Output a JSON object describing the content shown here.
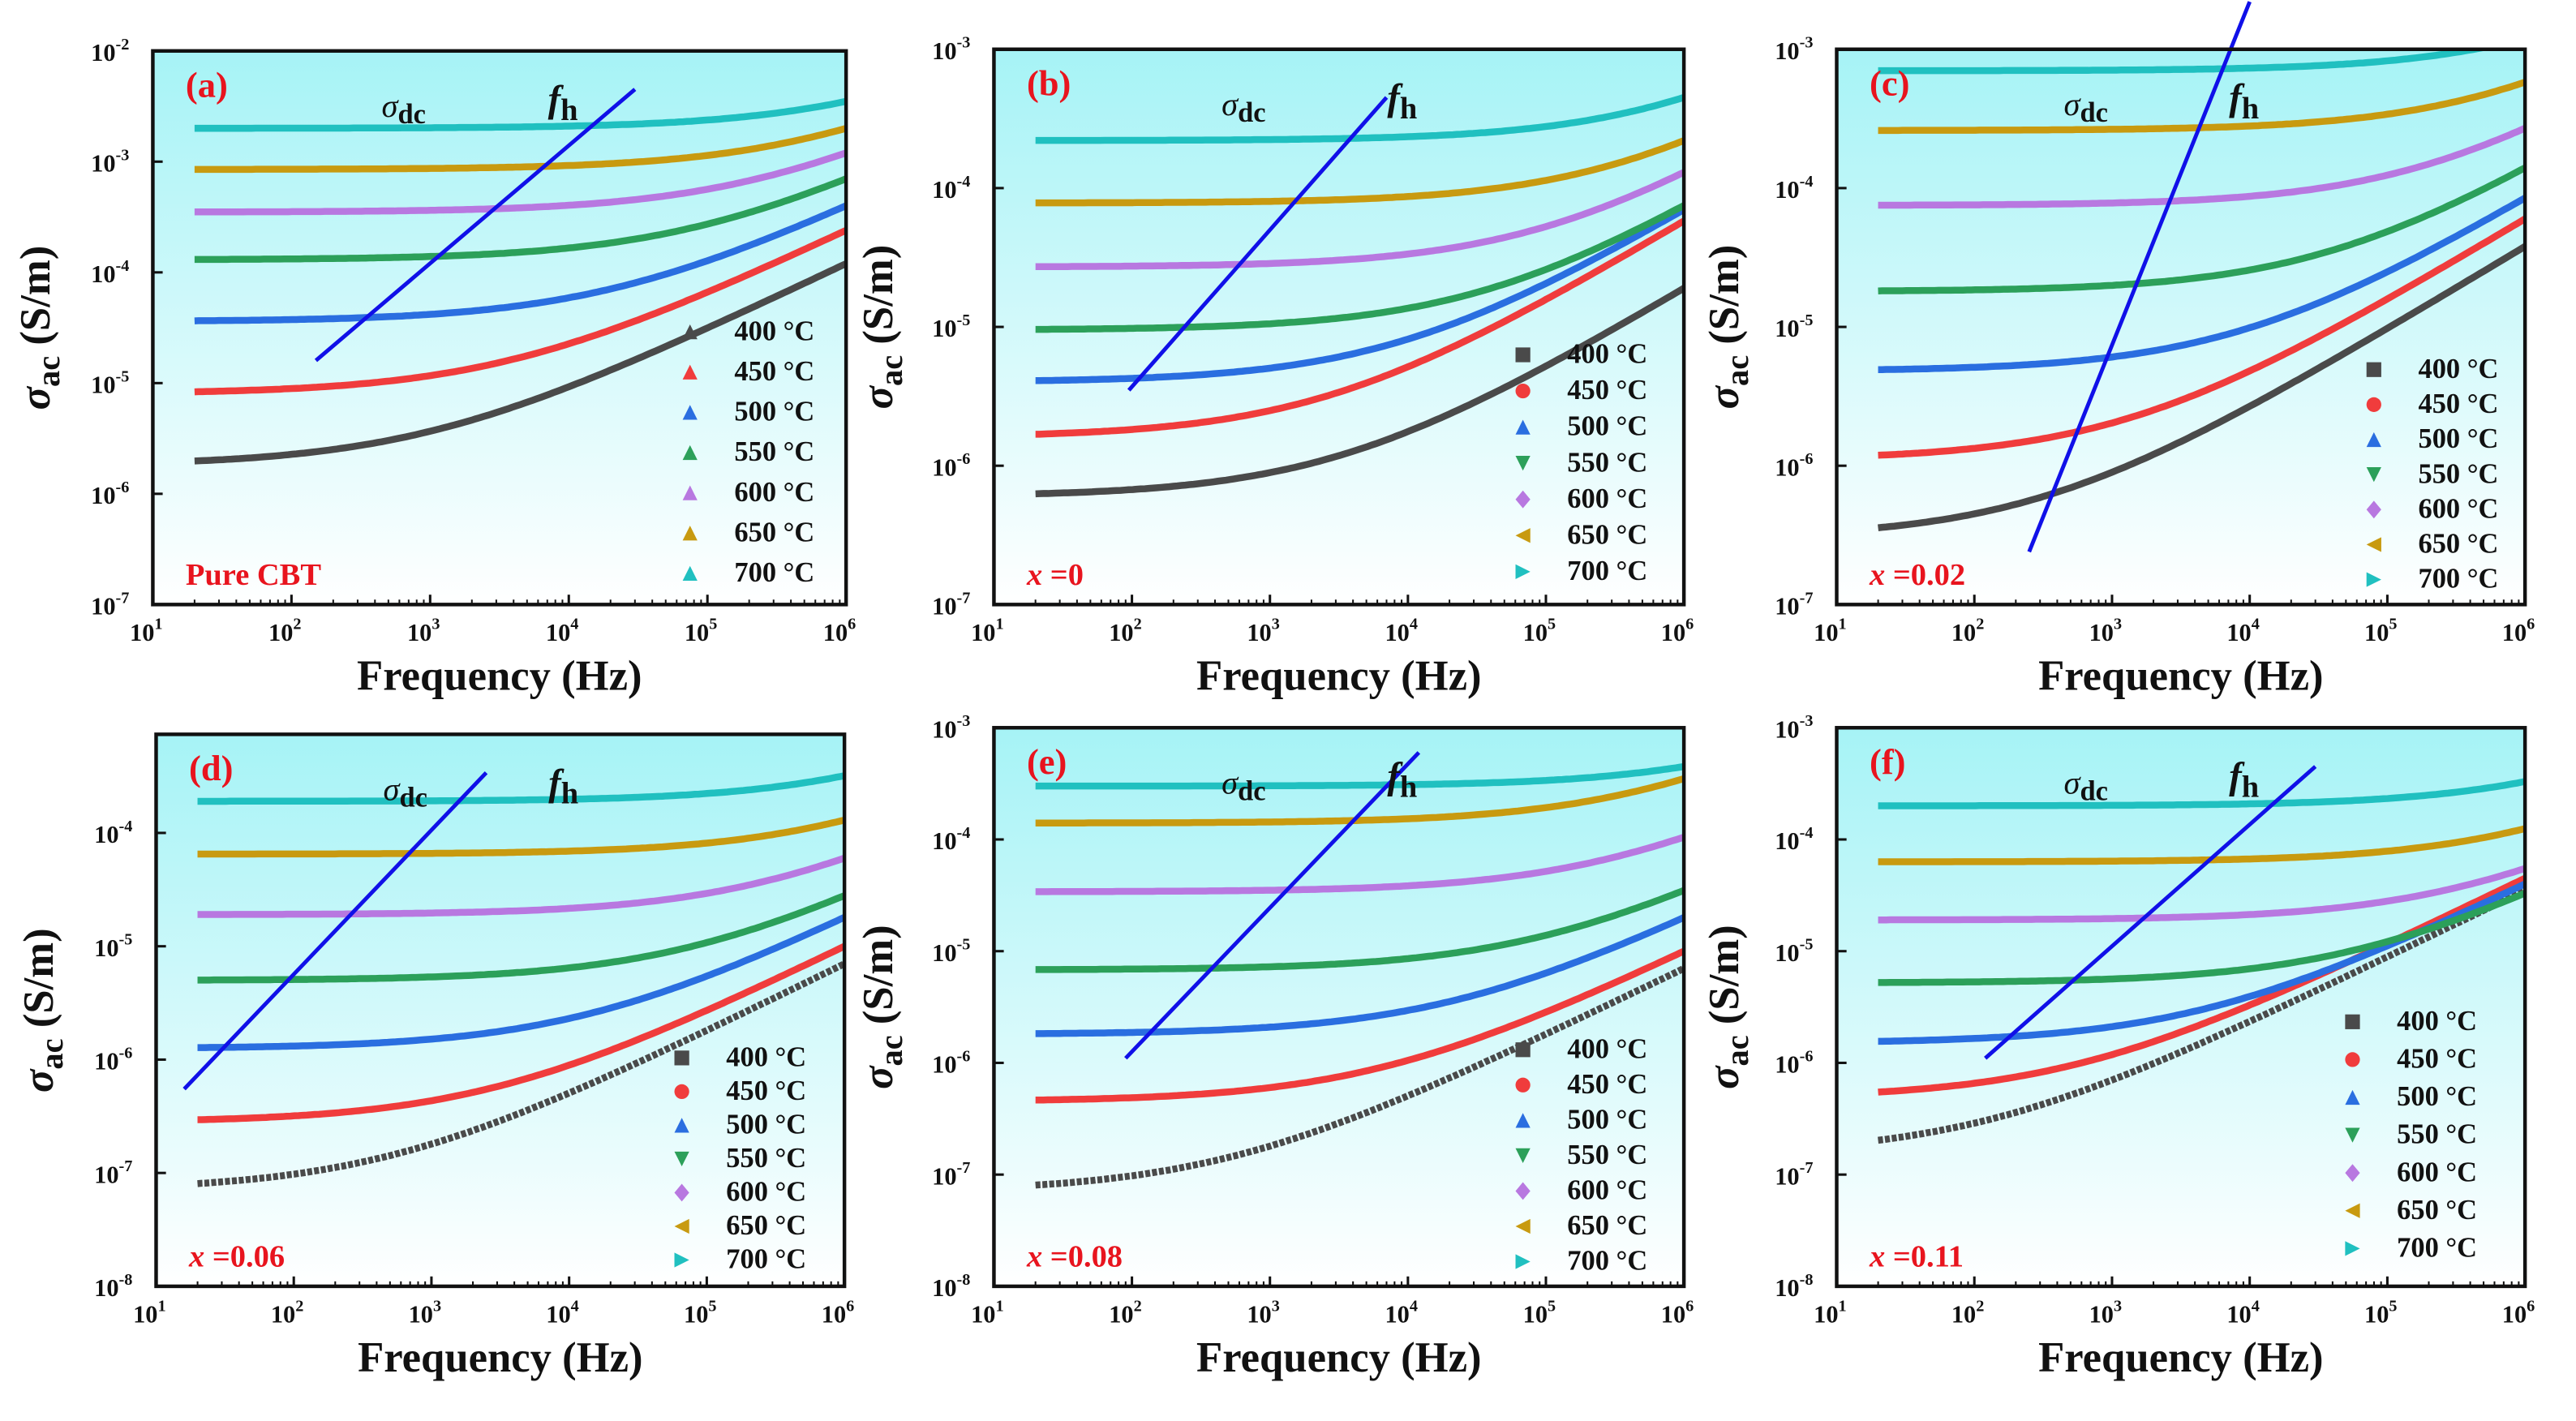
{
  "chart_data": [
    {
      "type": "scatter",
      "panel_label": "(a)",
      "sample_label": "Pure CBT",
      "xlabel": "Frequency (Hz)",
      "ylabel_main": "σ",
      "ylabel_sub": "ac",
      "ylabel_unit": " (S/m)",
      "x_scale": "log",
      "y_scale": "log",
      "xlim": [
        10,
        1000000
      ],
      "ylim_log10": [
        -7,
        -2
      ],
      "x_ticks": [
        "1",
        "2",
        "3",
        "4",
        "5",
        "6"
      ],
      "y_ticks": [
        "-7",
        "-6",
        "-5",
        "-4",
        "-3",
        "-2"
      ],
      "annotation_sigma": {
        "main": "σ",
        "sub": "dc"
      },
      "annotation_fh": {
        "main": "f",
        "sub": "h"
      },
      "fh_line": {
        "f": [
          150,
          30000
        ],
        "sigma": [
          1.6e-05,
          0.0045
        ]
      },
      "marker_style": "triangles",
      "series": [
        {
          "name": "400 °C",
          "sigma_dc": 1.8e-06,
          "sigma_1MHz": 0.00012
        },
        {
          "name": "450 °C",
          "sigma_dc": 8e-06,
          "sigma_1MHz": 0.00024
        },
        {
          "name": "500 °C",
          "sigma_dc": 3.6e-05,
          "sigma_1MHz": 0.0004
        },
        {
          "name": "550 °C",
          "sigma_dc": 0.00013,
          "sigma_1MHz": 0.0007
        },
        {
          "name": "600 °C",
          "sigma_dc": 0.00035,
          "sigma_1MHz": 0.0012
        },
        {
          "name": "650 °C",
          "sigma_dc": 0.00085,
          "sigma_1MHz": 0.002
        },
        {
          "name": "700 °C",
          "sigma_dc": 0.002,
          "sigma_1MHz": 0.0035
        }
      ]
    },
    {
      "type": "scatter",
      "panel_label": "(b)",
      "sample_label": "x =0",
      "xlabel": "Frequency (Hz)",
      "ylabel_main": "σ",
      "ylabel_sub": "ac",
      "ylabel_unit": " (S/m)",
      "x_scale": "log",
      "y_scale": "log",
      "xlim": [
        10,
        1000000
      ],
      "ylim_log10": [
        -7,
        -3
      ],
      "x_ticks": [
        "1",
        "2",
        "3",
        "4",
        "5",
        "6"
      ],
      "y_ticks": [
        "-7",
        "-6",
        "-5",
        "-4",
        "-3"
      ],
      "annotation_sigma": {
        "main": "σ",
        "sub": "dc"
      },
      "annotation_fh": {
        "main": "f",
        "sub": "h"
      },
      "fh_line": {
        "f": [
          95,
          7000
        ],
        "sigma": [
          3.5e-06,
          0.00045
        ]
      },
      "marker_style": "mixed",
      "series": [
        {
          "name": "400 °C",
          "sigma_dc": 6e-07,
          "sigma_1MHz": 1.9e-05
        },
        {
          "name": "450 °C",
          "sigma_dc": 1.6e-06,
          "sigma_1MHz": 5.8e-05
        },
        {
          "name": "500 °C",
          "sigma_dc": 4e-06,
          "sigma_1MHz": 7e-05
        },
        {
          "name": "550 °C",
          "sigma_dc": 9.5e-06,
          "sigma_1MHz": 7.5e-05
        },
        {
          "name": "600 °C",
          "sigma_dc": 2.7e-05,
          "sigma_1MHz": 0.00013
        },
        {
          "name": "650 °C",
          "sigma_dc": 7.8e-05,
          "sigma_1MHz": 0.00022
        },
        {
          "name": "700 °C",
          "sigma_dc": 0.00022,
          "sigma_1MHz": 0.00045
        }
      ]
    },
    {
      "type": "scatter",
      "panel_label": "(c)",
      "sample_label": "x =0.02",
      "xlabel": "Frequency (Hz)",
      "ylabel_main": "σ",
      "ylabel_sub": "ac",
      "ylabel_unit": " (S/m)",
      "x_scale": "log",
      "y_scale": "log",
      "xlim": [
        10,
        1000000
      ],
      "ylim_log10": [
        -7,
        -3
      ],
      "x_ticks": [
        "1",
        "2",
        "3",
        "4",
        "5",
        "6"
      ],
      "y_ticks": [
        "-7",
        "-6",
        "-5",
        "-4",
        "-3"
      ],
      "annotation_sigma": {
        "main": "σ",
        "sub": "dc"
      },
      "annotation_fh": {
        "main": "f",
        "sub": "h"
      },
      "fh_line": {
        "f": [
          250,
          10000
        ],
        "sigma": [
          2.4e-07,
          0.0022
        ]
      },
      "marker_style": "mixed",
      "series": [
        {
          "name": "400 °C",
          "sigma_dc": 3e-07,
          "sigma_1MHz": 3.8e-05
        },
        {
          "name": "450 °C",
          "sigma_dc": 1.1e-06,
          "sigma_1MHz": 6e-05
        },
        {
          "name": "500 °C",
          "sigma_dc": 4.8e-06,
          "sigma_1MHz": 8.5e-05
        },
        {
          "name": "550 °C",
          "sigma_dc": 1.8e-05,
          "sigma_1MHz": 0.00014
        },
        {
          "name": "600 °C",
          "sigma_dc": 7.5e-05,
          "sigma_1MHz": 0.00027
        },
        {
          "name": "650 °C",
          "sigma_dc": 0.00026,
          "sigma_1MHz": 0.00058
        },
        {
          "name": "700 °C",
          "sigma_dc": 0.0007,
          "sigma_1MHz": 0.0012
        }
      ]
    },
    {
      "type": "scatter",
      "panel_label": "(d)",
      "sample_label": "x =0.06",
      "xlabel": "Frequency (Hz)",
      "ylabel_main": "σ",
      "ylabel_sub": "ac",
      "ylabel_unit": " (S/m)",
      "x_scale": "log",
      "y_scale": "log",
      "xlim": [
        10,
        1000000
      ],
      "ylim_log10": [
        -8,
        -3.13
      ],
      "x_ticks": [
        "1",
        "2",
        "3",
        "4",
        "5",
        "6"
      ],
      "y_ticks": [
        "-8",
        "-7",
        "-6",
        "-5",
        "-4"
      ],
      "annotation_sigma": {
        "main": "σ",
        "sub": "dc"
      },
      "annotation_fh": {
        "main": "f",
        "sub": "h"
      },
      "fh_line": {
        "f": [
          16,
          2500
        ],
        "sigma": [
          5.5e-07,
          0.00034
        ]
      },
      "marker_style": "mixed",
      "series": [
        {
          "name": "400 °C",
          "sigma_dc": 7e-08,
          "sigma_1MHz": 7e-06
        },
        {
          "name": "450 °C",
          "sigma_dc": 2.8e-07,
          "sigma_1MHz": 1e-05
        },
        {
          "name": "500 °C",
          "sigma_dc": 1.25e-06,
          "sigma_1MHz": 1.8e-05
        },
        {
          "name": "550 °C",
          "sigma_dc": 5e-06,
          "sigma_1MHz": 2.8e-05
        },
        {
          "name": "600 °C",
          "sigma_dc": 1.9e-05,
          "sigma_1MHz": 6e-05
        },
        {
          "name": "650 °C",
          "sigma_dc": 6.5e-05,
          "sigma_1MHz": 0.00013
        },
        {
          "name": "700 °C",
          "sigma_dc": 0.00019,
          "sigma_1MHz": 0.00032
        }
      ]
    },
    {
      "type": "scatter",
      "panel_label": "(e)",
      "sample_label": "x =0.08",
      "xlabel": "Frequency (Hz)",
      "ylabel_main": "σ",
      "ylabel_sub": "ac",
      "ylabel_unit": " (S/m)",
      "x_scale": "log",
      "y_scale": "log",
      "xlim": [
        10,
        1000000
      ],
      "ylim_log10": [
        -8,
        -3
      ],
      "x_ticks": [
        "1",
        "2",
        "3",
        "4",
        "5",
        "6"
      ],
      "y_ticks": [
        "-8",
        "-7",
        "-6",
        "-5",
        "-4",
        "-3"
      ],
      "annotation_sigma": {
        "main": "σ",
        "sub": "dc"
      },
      "annotation_fh": {
        "main": "f",
        "sub": "h"
      },
      "fh_line": {
        "f": [
          90,
          12000
        ],
        "sigma": [
          1.1e-06,
          0.0006
        ]
      },
      "marker_style": "mixed",
      "series": [
        {
          "name": "400 °C",
          "sigma_dc": 7e-08,
          "sigma_1MHz": 7e-06
        },
        {
          "name": "450 °C",
          "sigma_dc": 4.5e-07,
          "sigma_1MHz": 1e-05
        },
        {
          "name": "500 °C",
          "sigma_dc": 1.8e-06,
          "sigma_1MHz": 2e-05
        },
        {
          "name": "550 °C",
          "sigma_dc": 6.8e-06,
          "sigma_1MHz": 3.5e-05
        },
        {
          "name": "600 °C",
          "sigma_dc": 3.4e-05,
          "sigma_1MHz": 0.000105
        },
        {
          "name": "650 °C",
          "sigma_dc": 0.00014,
          "sigma_1MHz": 0.00035
        },
        {
          "name": "700 °C",
          "sigma_dc": 0.0003,
          "sigma_1MHz": 0.00045
        }
      ]
    },
    {
      "type": "scatter",
      "panel_label": "(f)",
      "sample_label": "x =0.11",
      "xlabel": "Frequency (Hz)",
      "ylabel_main": "σ",
      "ylabel_sub": "ac",
      "ylabel_unit": " (S/m)",
      "x_scale": "log",
      "y_scale": "log",
      "xlim": [
        10,
        1000000
      ],
      "ylim_log10": [
        -8,
        -3
      ],
      "x_ticks": [
        "1",
        "2",
        "3",
        "4",
        "5",
        "6"
      ],
      "y_ticks": [
        "-8",
        "-7",
        "-6",
        "-5",
        "-4",
        "-3"
      ],
      "annotation_sigma": {
        "main": "σ",
        "sub": "dc"
      },
      "annotation_fh": {
        "main": "f",
        "sub": "h"
      },
      "fh_line": {
        "f": [
          120,
          30000
        ],
        "sigma": [
          1.1e-06,
          0.00045
        ]
      },
      "marker_style": "mixed",
      "series": [
        {
          "name": "400 °C",
          "sigma_dc": 1.5e-07,
          "sigma_1MHz": 3.5e-05
        },
        {
          "name": "450 °C",
          "sigma_dc": 4.8e-07,
          "sigma_1MHz": 4.5e-05
        },
        {
          "name": "500 °C",
          "sigma_dc": 1.5e-06,
          "sigma_1MHz": 4e-05
        },
        {
          "name": "550 °C",
          "sigma_dc": 5.2e-06,
          "sigma_1MHz": 3.3e-05
        },
        {
          "name": "600 °C",
          "sigma_dc": 1.9e-05,
          "sigma_1MHz": 5.5e-05
        },
        {
          "name": "650 °C",
          "sigma_dc": 6.3e-05,
          "sigma_1MHz": 0.000125
        },
        {
          "name": "700 °C",
          "sigma_dc": 0.0002,
          "sigma_1MHz": 0.00033
        }
      ]
    }
  ],
  "colors": {
    "series": [
      "#4a4a4a",
      "#f03c3c",
      "#2a6ee0",
      "#2ca05a",
      "#b878e0",
      "#c89a10",
      "#20c0c0"
    ],
    "fh_line": "#1010e8",
    "labels": "#e8141e",
    "bg_top": "#a6f3f6",
    "bg_bottom": "#ffffff"
  }
}
